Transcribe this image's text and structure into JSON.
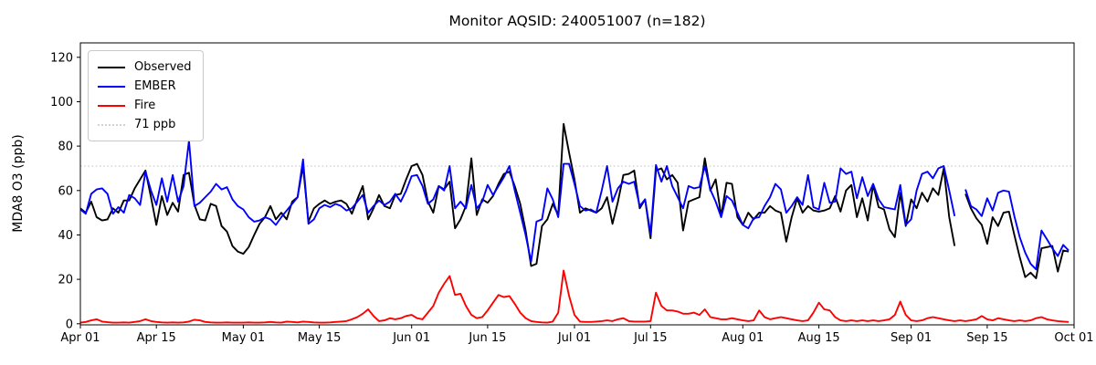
{
  "title": "Monitor AQSID: 240051007 (n=182)",
  "legend": {
    "items": [
      {
        "label": "Observed",
        "color": "#000000",
        "style": "solid"
      },
      {
        "label": "EMBER",
        "color": "#0000ff",
        "style": "solid"
      },
      {
        "label": "Fire",
        "color": "#ff0000",
        "style": "solid"
      },
      {
        "label": "71 ppb",
        "color": "#d3d3d3",
        "style": "dotted"
      }
    ]
  },
  "chart_data": {
    "type": "line",
    "title": "Monitor AQSID: 240051007 (n=182)",
    "xlabel": "",
    "ylabel": "MDA8 O3 (ppb)",
    "x_start": "Apr 01",
    "x_end": "Oct 01",
    "x_unit": "daily values, day index 0 = Apr 01",
    "n_days": 183,
    "ylim": [
      -0.5,
      126.5
    ],
    "yticks": [
      0,
      20,
      40,
      60,
      80,
      100,
      120
    ],
    "xticks": [
      {
        "pos": 0,
        "label": "Apr 01"
      },
      {
        "pos": 14,
        "label": "Apr 15"
      },
      {
        "pos": 30,
        "label": "May 01"
      },
      {
        "pos": 44,
        "label": "May 15"
      },
      {
        "pos": 61,
        "label": "Jun 01"
      },
      {
        "pos": 75,
        "label": "Jun 15"
      },
      {
        "pos": 91,
        "label": "Jul 01"
      },
      {
        "pos": 105,
        "label": "Jul 15"
      },
      {
        "pos": 122,
        "label": "Aug 01"
      },
      {
        "pos": 136,
        "label": "Aug 15"
      },
      {
        "pos": 153,
        "label": "Sep 01"
      },
      {
        "pos": 167,
        "label": "Sep 15"
      },
      {
        "pos": 183,
        "label": "Oct 01"
      }
    ],
    "threshold": {
      "value": 71,
      "label": "71 ppb",
      "color": "#d3d3d3",
      "style": "dotted"
    },
    "grid": false,
    "legend_position": "upper left",
    "missing_data_note": "one missing day (Sep 10) creates a gap in Observed and EMBER lines",
    "series": [
      {
        "name": "Observed",
        "color": "#000000",
        "values": [
          52,
          50,
          55,
          48,
          46.5,
          47,
          52,
          50,
          55.5,
          55.5,
          61,
          65,
          69,
          57,
          44.5,
          57.5,
          49,
          54.5,
          50.5,
          67,
          68,
          53.5,
          47,
          46.5,
          54,
          53,
          44,
          41.5,
          35,
          32.5,
          31.5,
          34.5,
          40,
          45,
          48,
          53,
          47,
          50,
          47,
          55,
          57,
          71,
          46,
          52,
          54,
          55.5,
          54,
          55,
          55.5,
          54,
          49.5,
          56,
          62,
          47,
          52,
          58,
          53,
          52,
          58,
          58.5,
          65,
          71,
          72,
          67,
          55,
          50,
          62,
          60.5,
          64,
          43,
          47,
          53,
          74.5,
          49,
          56,
          54.5,
          57.5,
          63,
          67.5,
          68.5,
          62,
          54,
          42,
          26,
          27,
          44,
          47,
          54,
          49,
          90,
          77,
          65,
          50,
          52,
          51,
          50,
          52,
          57,
          45,
          55,
          67,
          67.5,
          69,
          52,
          56,
          38.5,
          69,
          70,
          65,
          67,
          63.5,
          42,
          55,
          56,
          57,
          74.5,
          60,
          65,
          48.5,
          63.5,
          63,
          48,
          44.5,
          50,
          47,
          50,
          50,
          53,
          51,
          50,
          37,
          48,
          56.5,
          50,
          53,
          51,
          50.5,
          51,
          52,
          57.5,
          50.5,
          60,
          62.5,
          48,
          56.5,
          46.5,
          62.5,
          52.5,
          51.5,
          42.5,
          39,
          59,
          44,
          56,
          52,
          59,
          55,
          61,
          58,
          70,
          48,
          35,
          null,
          58.5,
          52,
          47.5,
          44.5,
          36,
          48,
          44,
          50,
          50.5,
          40,
          30,
          21,
          23,
          20.5,
          34,
          34.5,
          35,
          23.5,
          33,
          32.5
        ]
      },
      {
        "name": "EMBER",
        "color": "#0000ff",
        "values": [
          51.5,
          49.5,
          58.5,
          60.5,
          61,
          58.5,
          49.5,
          52.5,
          50,
          58,
          56.5,
          53.5,
          68.5,
          60,
          53.5,
          65.5,
          55,
          67,
          55,
          62,
          82.5,
          53,
          54.5,
          57,
          59.5,
          63,
          60.5,
          61.5,
          56,
          53,
          51.5,
          48,
          46,
          46.5,
          48,
          47,
          44.5,
          48,
          51,
          54,
          57,
          74,
          45,
          47,
          52,
          53.5,
          52.5,
          54,
          53,
          51,
          52,
          55,
          58,
          50,
          53,
          55.5,
          53.5,
          55,
          58.5,
          55,
          60,
          66.5,
          67,
          62,
          54,
          56,
          62,
          60,
          71,
          52,
          55,
          52,
          62.5,
          52,
          55,
          62.5,
          58,
          62,
          66,
          71,
          60,
          50,
          40,
          28,
          46,
          47,
          61,
          56,
          48,
          72,
          72,
          63,
          53,
          51,
          51.5,
          50,
          60,
          71,
          55,
          61,
          64,
          63,
          64,
          53,
          56,
          40.5,
          71.5,
          64,
          71,
          62,
          57,
          52,
          62,
          61,
          61.5,
          71,
          60.5,
          55,
          48,
          57.5,
          55.5,
          50,
          44.5,
          43,
          47.5,
          48,
          53,
          57,
          63,
          60.5,
          50,
          53,
          57,
          53.5,
          67,
          52.5,
          51.5,
          63.5,
          54.5,
          55,
          70,
          67.5,
          68.5,
          56.5,
          66,
          57.5,
          63,
          56,
          52.5,
          52,
          51.5,
          62.5,
          44.5,
          47,
          60,
          67.5,
          68.5,
          65.5,
          70,
          71,
          60,
          48.5,
          null,
          60.5,
          53,
          51.5,
          48.5,
          56.5,
          51,
          59,
          60,
          59.5,
          48.5,
          39,
          32,
          27,
          24.5,
          42,
          38,
          34,
          30.5,
          35.5,
          33
        ]
      },
      {
        "name": "Fire",
        "color": "#ff0000",
        "values": [
          0.5,
          0.8,
          1.5,
          2,
          1,
          0.7,
          0.5,
          0.5,
          0.6,
          0.5,
          0.8,
          1.2,
          2,
          1.2,
          0.8,
          0.6,
          0.5,
          0.6,
          0.5,
          0.6,
          1,
          1.8,
          1.5,
          0.8,
          0.6,
          0.5,
          0.5,
          0.6,
          0.5,
          0.5,
          0.5,
          0.6,
          0.5,
          0.5,
          0.6,
          0.8,
          0.6,
          0.5,
          1,
          0.8,
          0.6,
          1,
          0.8,
          0.6,
          0.5,
          0.5,
          0.6,
          0.8,
          1,
          1.2,
          2,
          3,
          4.5,
          6.5,
          3.5,
          1.2,
          1.5,
          2.5,
          2,
          2.5,
          3.5,
          4,
          2.5,
          2,
          5,
          8,
          14,
          18,
          21.5,
          13,
          13.5,
          8,
          4,
          2.5,
          3,
          6,
          9.5,
          13,
          12,
          12.5,
          9,
          5,
          2.5,
          1.2,
          0.8,
          0.6,
          0.5,
          1,
          5,
          24,
          12.5,
          4,
          1,
          0.8,
          0.8,
          1,
          1.2,
          1.5,
          1.2,
          2,
          2.5,
          1.2,
          1,
          1,
          1,
          1.2,
          14,
          8,
          6,
          6,
          5.5,
          4.5,
          4.5,
          5,
          4,
          6.5,
          3,
          2.5,
          2,
          2,
          2.5,
          2,
          1.5,
          1.2,
          1.5,
          6,
          3,
          2,
          2.5,
          3,
          2.5,
          2,
          1.5,
          1.2,
          1.5,
          5,
          9.5,
          6.5,
          6,
          3,
          1.5,
          1.2,
          1.5,
          1.2,
          1.5,
          1.2,
          1.5,
          1.2,
          1.5,
          2,
          4,
          10,
          4,
          1.5,
          1.2,
          1.5,
          2.5,
          3,
          2.5,
          2,
          1.5,
          1.2,
          1.5,
          1.2,
          1.5,
          2,
          3.5,
          2,
          1.5,
          2.5,
          2,
          1.5,
          1.2,
          1.5,
          1.2,
          1.5,
          2.5,
          3,
          2,
          1.5,
          1.2,
          1,
          0.8
        ]
      }
    ]
  }
}
